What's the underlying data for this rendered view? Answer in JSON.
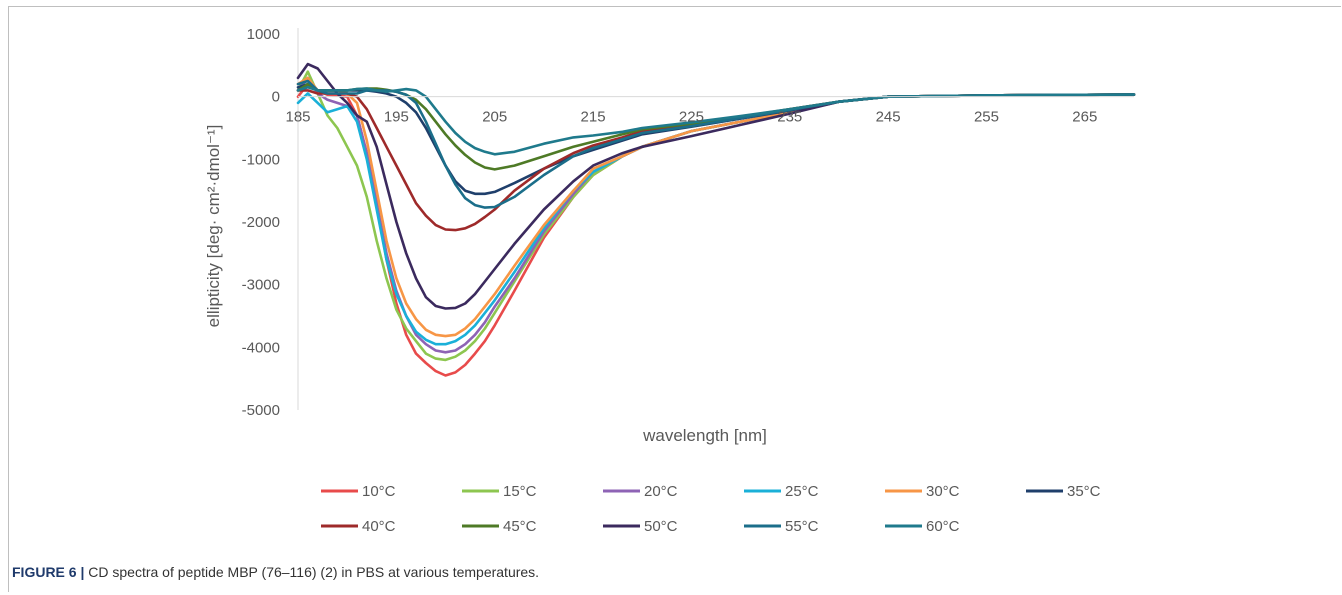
{
  "caption": {
    "label": "FIGURE 6 |",
    "text": " CD spectra of peptide MBP (76–116) (2) in PBS at various temperatures."
  },
  "chart_data": {
    "type": "line",
    "title": "",
    "xlabel": "wavelength [nm]",
    "ylabel": "ellipticity [deg· cm²·dmol⁻¹]",
    "xlim": [
      185,
      270
    ],
    "ylim": [
      -5000,
      1000
    ],
    "x_ticks": [
      185,
      195,
      205,
      215,
      225,
      235,
      245,
      255,
      265
    ],
    "y_ticks": [
      1000,
      0,
      -1000,
      -2000,
      -3000,
      -4000,
      -5000
    ],
    "grid": false,
    "legend_position": "bottom",
    "x": [
      185,
      186,
      187,
      188,
      189,
      190,
      191,
      192,
      193,
      194,
      195,
      196,
      197,
      198,
      199,
      200,
      201,
      202,
      203,
      204,
      205,
      207,
      210,
      213,
      215,
      218,
      220,
      225,
      230,
      235,
      240,
      245,
      250,
      255,
      260,
      265,
      270
    ],
    "series": [
      {
        "name": "10°C",
        "color": "#e84b4b",
        "values": [
          0,
          200,
          100,
          30,
          20,
          0,
          -300,
          -900,
          -1700,
          -2600,
          -3300,
          -3800,
          -4100,
          -4250,
          -4380,
          -4450,
          -4400,
          -4280,
          -4100,
          -3900,
          -3650,
          -3100,
          -2250,
          -1600,
          -1250,
          -950,
          -800,
          -550,
          -400,
          -250,
          -80,
          0,
          10,
          20,
          25,
          30,
          35
        ]
      },
      {
        "name": "15°C",
        "color": "#8dc650",
        "values": [
          100,
          400,
          50,
          -300,
          -500,
          -800,
          -1100,
          -1600,
          -2300,
          -2900,
          -3400,
          -3700,
          -3900,
          -4100,
          -4180,
          -4200,
          -4150,
          -4050,
          -3900,
          -3700,
          -3450,
          -2950,
          -2200,
          -1600,
          -1250,
          -950,
          -800,
          -550,
          -400,
          -250,
          -80,
          0,
          10,
          20,
          25,
          30,
          35
        ]
      },
      {
        "name": "20°C",
        "color": "#8e63b5",
        "values": [
          100,
          300,
          50,
          -50,
          -100,
          -150,
          -300,
          -900,
          -1700,
          -2500,
          -3100,
          -3500,
          -3800,
          -3950,
          -4050,
          -4080,
          -4050,
          -3950,
          -3800,
          -3600,
          -3350,
          -2900,
          -2150,
          -1550,
          -1200,
          -950,
          -800,
          -550,
          -400,
          -250,
          -80,
          0,
          10,
          20,
          25,
          30,
          35
        ]
      },
      {
        "name": "25°C",
        "color": "#1ab0d8",
        "values": [
          -100,
          50,
          -100,
          -250,
          -200,
          -150,
          -400,
          -1000,
          -1800,
          -2600,
          -3150,
          -3500,
          -3750,
          -3880,
          -3950,
          -3950,
          -3900,
          -3800,
          -3650,
          -3450,
          -3250,
          -2800,
          -2100,
          -1500,
          -1200,
          -950,
          -800,
          -550,
          -400,
          -250,
          -80,
          0,
          10,
          20,
          25,
          30,
          35
        ]
      },
      {
        "name": "30°C",
        "color": "#f79646",
        "values": [
          200,
          300,
          100,
          100,
          100,
          50,
          -100,
          -700,
          -1500,
          -2300,
          -2900,
          -3300,
          -3550,
          -3720,
          -3800,
          -3820,
          -3800,
          -3700,
          -3550,
          -3350,
          -3150,
          -2700,
          -2050,
          -1500,
          -1150,
          -950,
          -800,
          -550,
          -400,
          -250,
          -80,
          0,
          10,
          20,
          25,
          30,
          35
        ]
      },
      {
        "name": "35°C",
        "color": "#1f3f6b",
        "values": [
          150,
          200,
          100,
          100,
          100,
          100,
          100,
          100,
          80,
          50,
          0,
          -100,
          -250,
          -500,
          -800,
          -1100,
          -1350,
          -1500,
          -1550,
          -1550,
          -1520,
          -1380,
          -1150,
          -950,
          -850,
          -700,
          -600,
          -480,
          -350,
          -220,
          -80,
          0,
          10,
          20,
          25,
          30,
          35
        ]
      },
      {
        "name": "40°C",
        "color": "#9e2a2a",
        "values": [
          100,
          100,
          50,
          50,
          50,
          50,
          0,
          -200,
          -500,
          -800,
          -1100,
          -1400,
          -1700,
          -1900,
          -2050,
          -2120,
          -2130,
          -2100,
          -2030,
          -1920,
          -1800,
          -1500,
          -1150,
          -900,
          -780,
          -650,
          -550,
          -450,
          -330,
          -200,
          -80,
          0,
          10,
          20,
          25,
          30,
          35
        ]
      },
      {
        "name": "45°C",
        "color": "#4e7a26",
        "values": [
          100,
          200,
          100,
          100,
          100,
          100,
          120,
          130,
          130,
          110,
          80,
          30,
          -50,
          -200,
          -400,
          -600,
          -780,
          -930,
          -1050,
          -1130,
          -1160,
          -1100,
          -950,
          -800,
          -720,
          -600,
          -520,
          -430,
          -320,
          -200,
          -80,
          0,
          10,
          20,
          25,
          30,
          35
        ]
      },
      {
        "name": "50°C",
        "color": "#3b2a5e",
        "values": [
          300,
          520,
          450,
          250,
          50,
          -100,
          -300,
          -400,
          -800,
          -1400,
          -2000,
          -2500,
          -2900,
          -3200,
          -3340,
          -3380,
          -3370,
          -3300,
          -3150,
          -2950,
          -2750,
          -2350,
          -1800,
          -1350,
          -1100,
          -900,
          -800,
          -630,
          -450,
          -270,
          -80,
          0,
          10,
          20,
          25,
          30,
          35
        ]
      },
      {
        "name": "55°C",
        "color": "#1b6e8a",
        "values": [
          200,
          250,
          100,
          50,
          50,
          50,
          50,
          100,
          100,
          100,
          80,
          30,
          -100,
          -400,
          -750,
          -1100,
          -1400,
          -1620,
          -1730,
          -1770,
          -1760,
          -1600,
          -1250,
          -950,
          -820,
          -680,
          -580,
          -470,
          -340,
          -210,
          -80,
          0,
          10,
          20,
          25,
          30,
          35
        ]
      },
      {
        "name": "60°C",
        "color": "#1f7a8c",
        "values": [
          100,
          150,
          100,
          100,
          100,
          100,
          120,
          130,
          100,
          80,
          100,
          120,
          100,
          0,
          -200,
          -400,
          -580,
          -720,
          -820,
          -880,
          -920,
          -880,
          -750,
          -650,
          -620,
          -560,
          -500,
          -410,
          -310,
          -200,
          -80,
          0,
          10,
          20,
          25,
          30,
          35
        ]
      }
    ]
  }
}
